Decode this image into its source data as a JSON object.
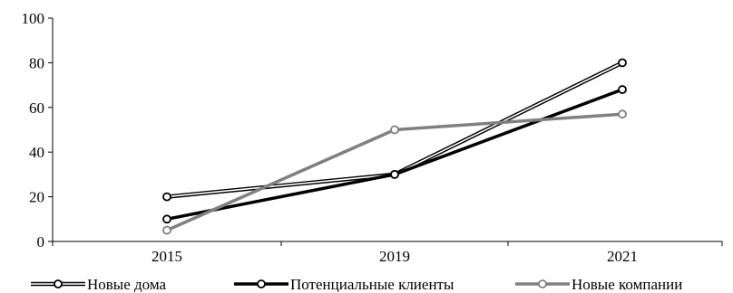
{
  "chart_data": {
    "type": "line",
    "x": [
      "2015",
      "2019",
      "2021"
    ],
    "ylim": [
      0,
      100
    ],
    "yticks": [
      0,
      20,
      40,
      60,
      80,
      100
    ],
    "grid": false,
    "legend_position": "bottom",
    "series": [
      {
        "name": "Новые дома",
        "values": [
          20,
          30,
          80
        ],
        "style": "double-line",
        "color": "#000000"
      },
      {
        "name": "Потенциальные клиенты",
        "values": [
          10,
          30,
          68
        ],
        "style": "thick",
        "color": "#000000"
      },
      {
        "name": "Новые компании",
        "values": [
          5,
          50,
          57
        ],
        "style": "thick",
        "color": "#808080"
      }
    ]
  }
}
